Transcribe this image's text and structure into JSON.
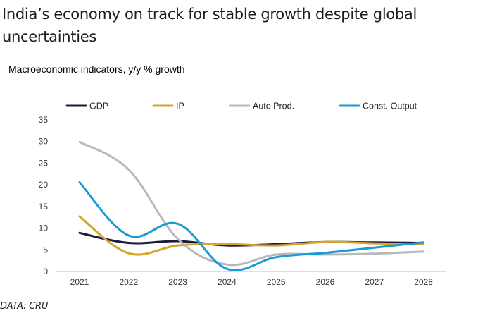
{
  "headline": "India’s economy on track for stable growth despite global uncertainties",
  "source": "DATA: CRU",
  "chart_data": {
    "type": "line",
    "title": "Macroeconomic indicators, y/y % growth",
    "x": [
      "2021",
      "2022",
      "2023",
      "2024",
      "2025",
      "2026",
      "2027",
      "2028"
    ],
    "ylim": [
      0,
      35
    ],
    "yticks": [
      0,
      5,
      10,
      15,
      20,
      25,
      30,
      35
    ],
    "grid": false,
    "legend_position": "top",
    "series": [
      {
        "name": "GDP",
        "color": "#1f1a3d",
        "values": [
          8.9,
          6.6,
          7.0,
          6.0,
          6.3,
          6.8,
          6.7,
          6.6
        ]
      },
      {
        "name": "IP",
        "color": "#d4a52a",
        "values": [
          12.7,
          4.2,
          6.0,
          6.3,
          6.0,
          6.8,
          6.5,
          6.3
        ]
      },
      {
        "name": "Auto Prod.",
        "color": "#b8b8b8",
        "values": [
          29.9,
          23.5,
          7.5,
          1.6,
          3.9,
          3.9,
          4.1,
          4.6
        ]
      },
      {
        "name": "Const. Output",
        "color": "#1a9ad6",
        "values": [
          20.6,
          8.3,
          11.0,
          0.6,
          3.3,
          4.3,
          5.5,
          6.7
        ]
      }
    ]
  }
}
